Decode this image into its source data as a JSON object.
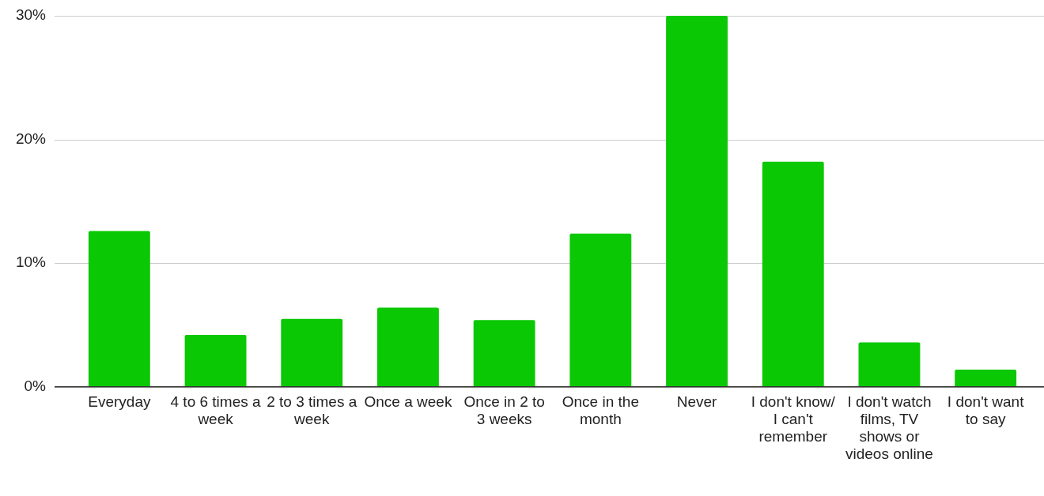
{
  "chart_data": {
    "type": "bar",
    "categories": [
      "Everyday",
      "4 to 6 times a week",
      "2 to 3 times a week",
      "Once a week",
      "Once in 2 to 3 weeks",
      "Once in the month",
      "Never",
      "I don't know/ I can't remember",
      "I don't watch films, TV shows or videos online",
      "I don't want to say"
    ],
    "values": [
      12.6,
      4.2,
      5.5,
      6.4,
      5.4,
      12.4,
      30.0,
      18.2,
      3.6,
      1.4
    ],
    "color": "#0bc804",
    "ylim": [
      0,
      30
    ],
    "yticks": [
      {
        "value": 0,
        "label": "0%"
      },
      {
        "value": 10,
        "label": "10%"
      },
      {
        "value": 20,
        "label": "20%"
      },
      {
        "value": 30,
        "label": "30%"
      }
    ],
    "grid": "y"
  }
}
